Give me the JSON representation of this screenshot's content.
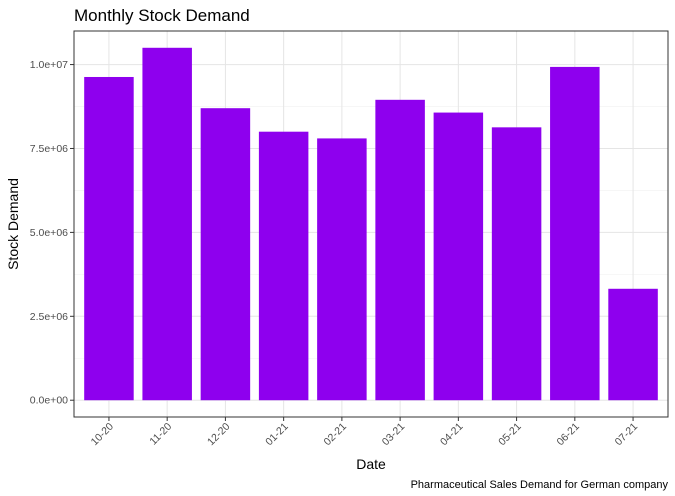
{
  "chart_data": {
    "type": "bar",
    "title": "Monthly Stock Demand",
    "xlabel": "Date",
    "ylabel": "Stock Demand",
    "caption": "Pharmaceutical Sales Demand for German company",
    "categories": [
      "10-20",
      "11-20",
      "12-20",
      "01-21",
      "02-21",
      "03-21",
      "04-21",
      "05-21",
      "06-21",
      "07-21"
    ],
    "values": [
      9630000,
      10500000,
      8700000,
      8000000,
      7800000,
      8950000,
      8570000,
      8130000,
      9930000,
      3320000
    ],
    "ylim": [
      -500000,
      11000000
    ],
    "yticks": [
      0,
      2500000,
      5000000,
      7500000,
      10000000
    ],
    "ytick_labels": [
      "0.0e+00",
      "2.5e+06",
      "5.0e+06",
      "7.5e+06",
      "1.0e+07"
    ],
    "bar_color": "#8E00EE",
    "grid": true,
    "legend": false
  }
}
